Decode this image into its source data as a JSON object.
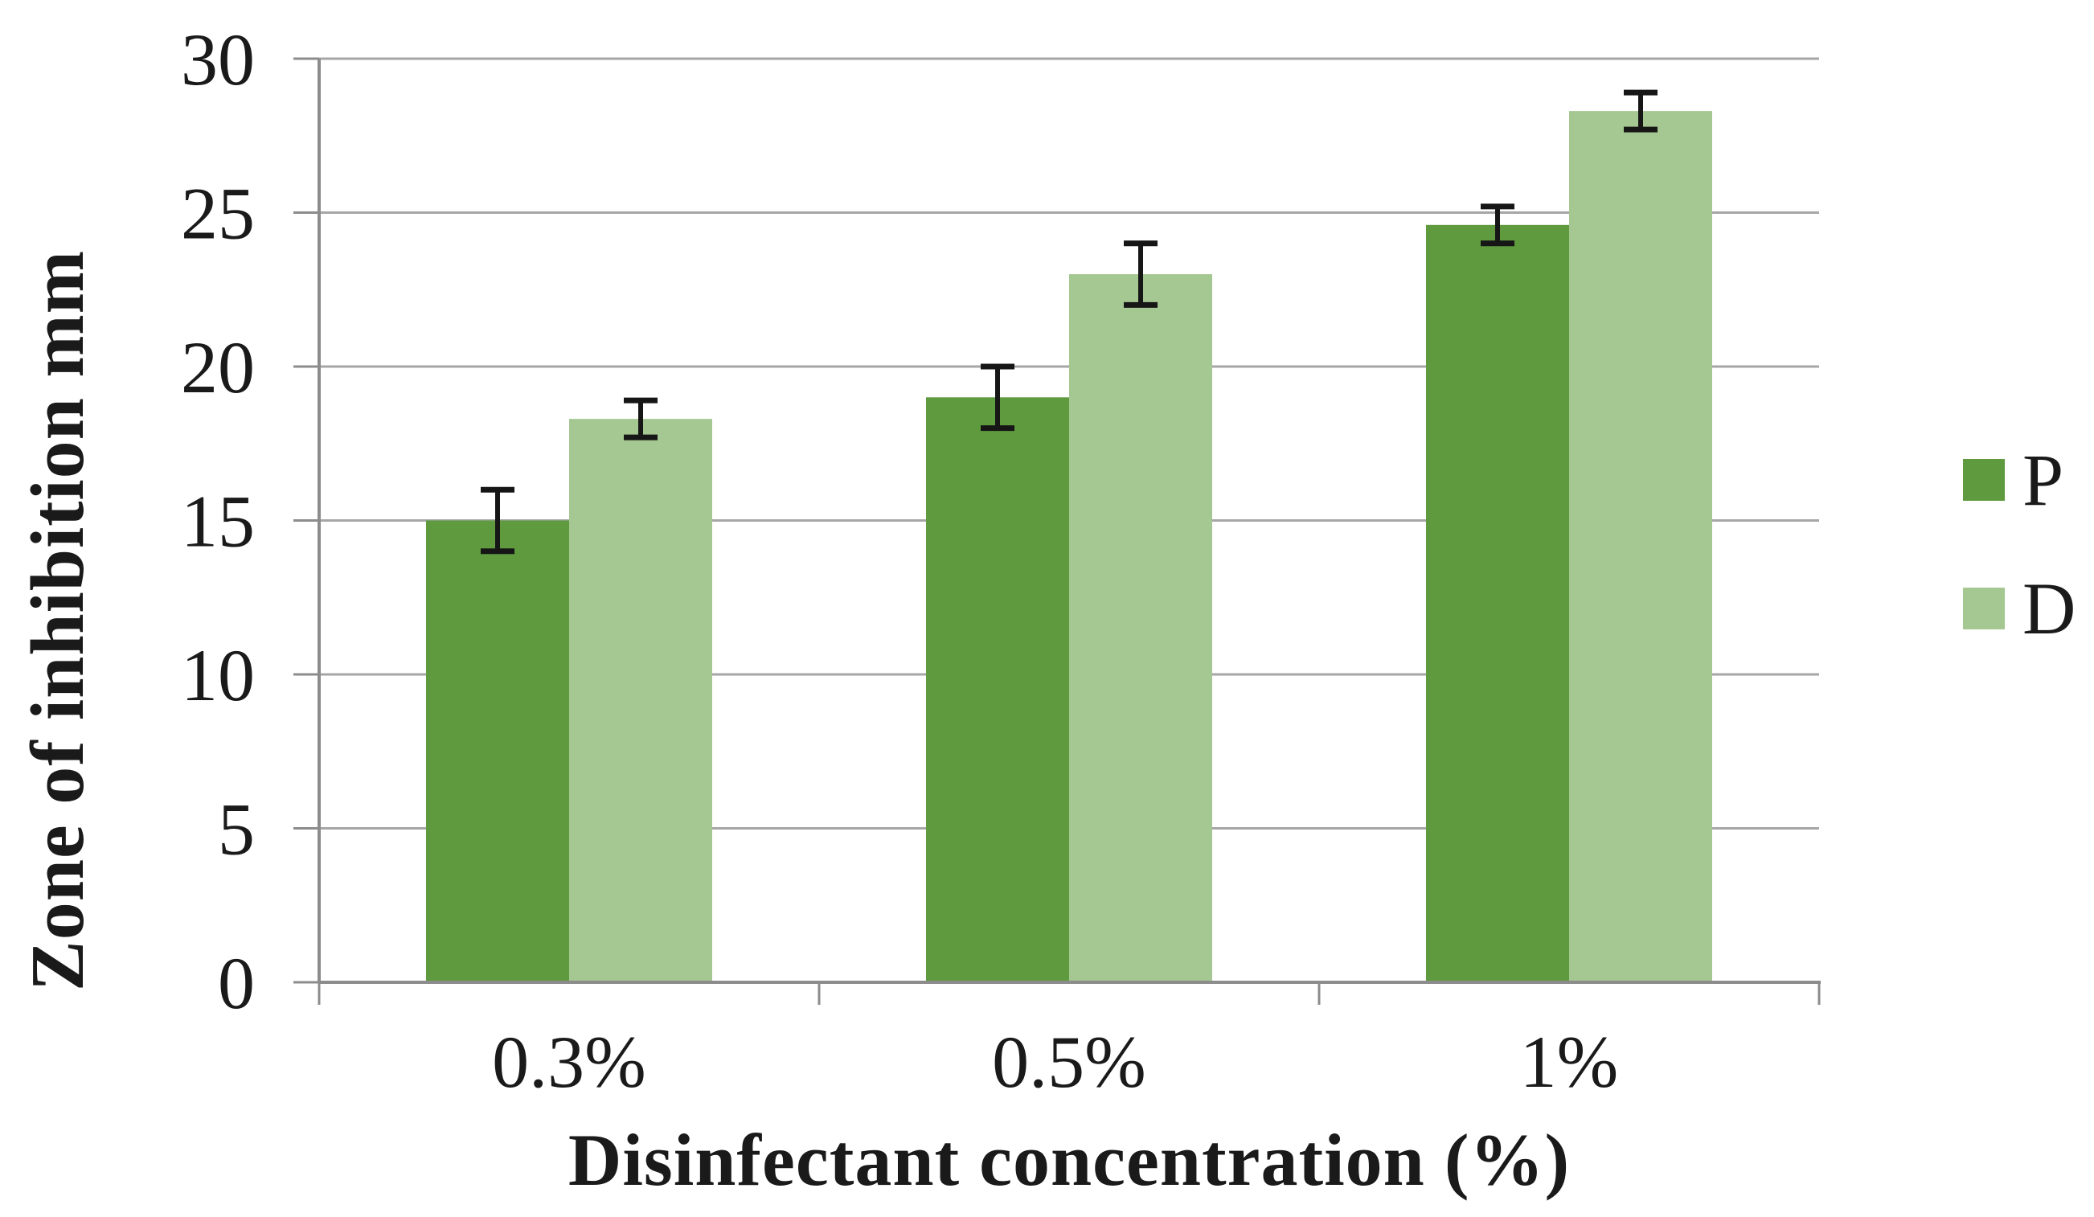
{
  "chart_data": {
    "type": "bar",
    "title": "",
    "xlabel": "Disinfectant concentration (%)",
    "ylabel": "Zone of inhibition mm",
    "categories": [
      "0.3%",
      "0.5%",
      "1%"
    ],
    "series": [
      {
        "name": "P",
        "color": "#5f9a3e",
        "values": [
          15,
          19,
          24.6
        ],
        "errors": [
          1.0,
          1.0,
          0.6
        ]
      },
      {
        "name": "D",
        "color": "#a5c791",
        "values": [
          18.3,
          23,
          28.3
        ],
        "errors": [
          0.6,
          1.0,
          0.6
        ]
      }
    ],
    "ylim": [
      0,
      30
    ],
    "yticks": [
      0,
      5,
      10,
      15,
      20,
      25,
      30
    ],
    "grid": true,
    "error_bars": true,
    "legend_position": "right"
  },
  "styles": {
    "grid_color": "#a6a6a6",
    "axis_color": "#8c8c8c",
    "error_bar_color": "#161616",
    "text_color": "#1a1a1a",
    "background": "#ffffff"
  }
}
